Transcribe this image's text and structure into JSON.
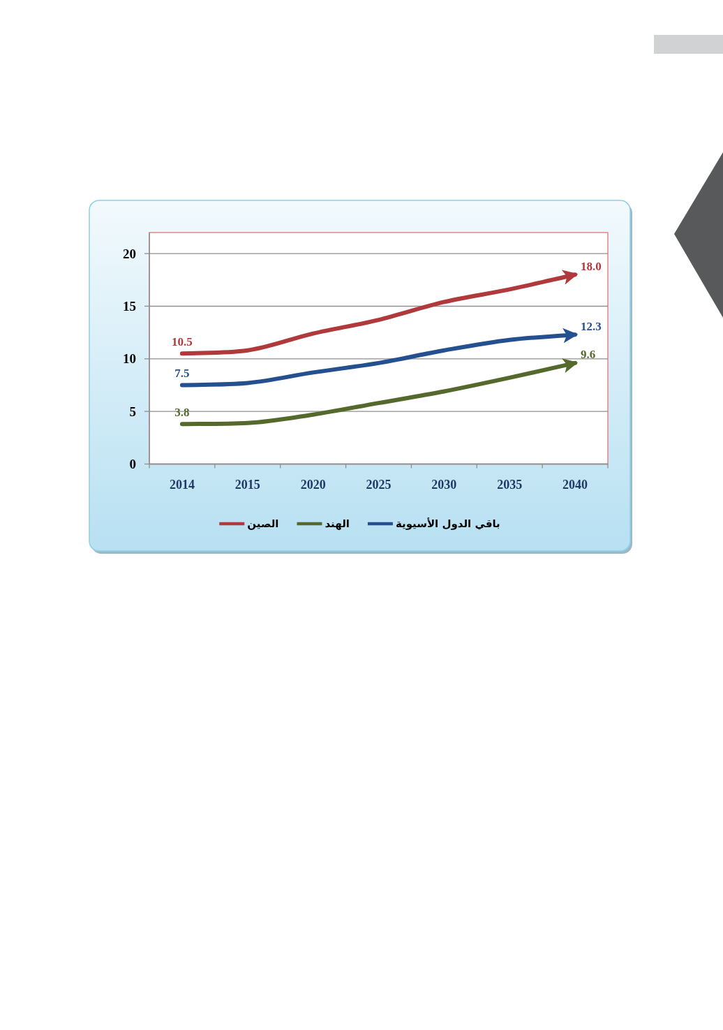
{
  "chart_data": {
    "type": "line",
    "categories": [
      "2014",
      "2015",
      "2020",
      "2025",
      "2030",
      "2035",
      "2040"
    ],
    "series": [
      {
        "name": "الصين",
        "color": "#b0393b",
        "values": [
          10.5,
          10.8,
          12.4,
          13.7,
          15.4,
          16.6,
          18.0
        ],
        "value_labels": [
          "10.5",
          null,
          null,
          null,
          null,
          null,
          "18.0"
        ]
      },
      {
        "name": "الهند",
        "color": "#56692c",
        "values": [
          3.8,
          3.9,
          4.7,
          5.8,
          6.9,
          8.2,
          9.6
        ],
        "value_labels": [
          "3.8",
          null,
          null,
          null,
          null,
          null,
          "9.6"
        ]
      },
      {
        "name": "باقي الدول الأسيوية",
        "color": "#25508f",
        "values": [
          7.5,
          7.7,
          8.7,
          9.6,
          10.8,
          11.8,
          12.3
        ],
        "value_labels": [
          "7.5",
          null,
          null,
          null,
          null,
          null,
          "12.3"
        ]
      }
    ],
    "ylim": [
      0,
      22
    ],
    "yticks": [
      0,
      5,
      10,
      15,
      20
    ],
    "grid": "y",
    "legend": "bottom",
    "line_style": "solid"
  }
}
